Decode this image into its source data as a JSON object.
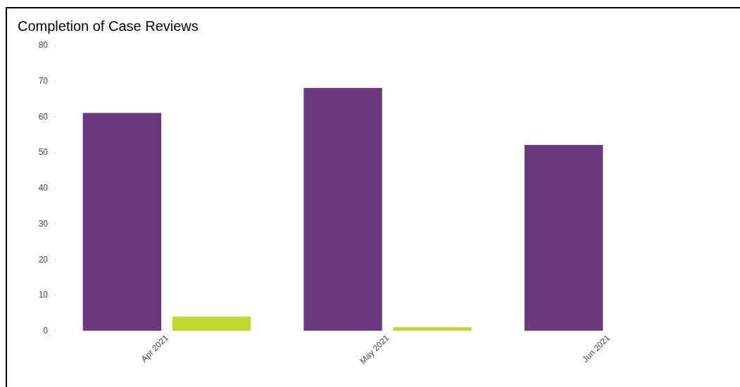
{
  "chart_data": {
    "type": "bar",
    "title": "Completion of Case Reviews",
    "categories": [
      "Apr 2021",
      "May 2021",
      "Jun 2021"
    ],
    "series": [
      {
        "color": "#6b387b",
        "values": [
          61,
          68,
          52
        ]
      },
      {
        "color": "#c0d72f",
        "values": [
          4,
          1,
          null
        ]
      }
    ],
    "ylim": [
      0,
      80
    ],
    "yticks": [
      0,
      10,
      20,
      30,
      40,
      50,
      60,
      70,
      80
    ],
    "grid": false
  }
}
